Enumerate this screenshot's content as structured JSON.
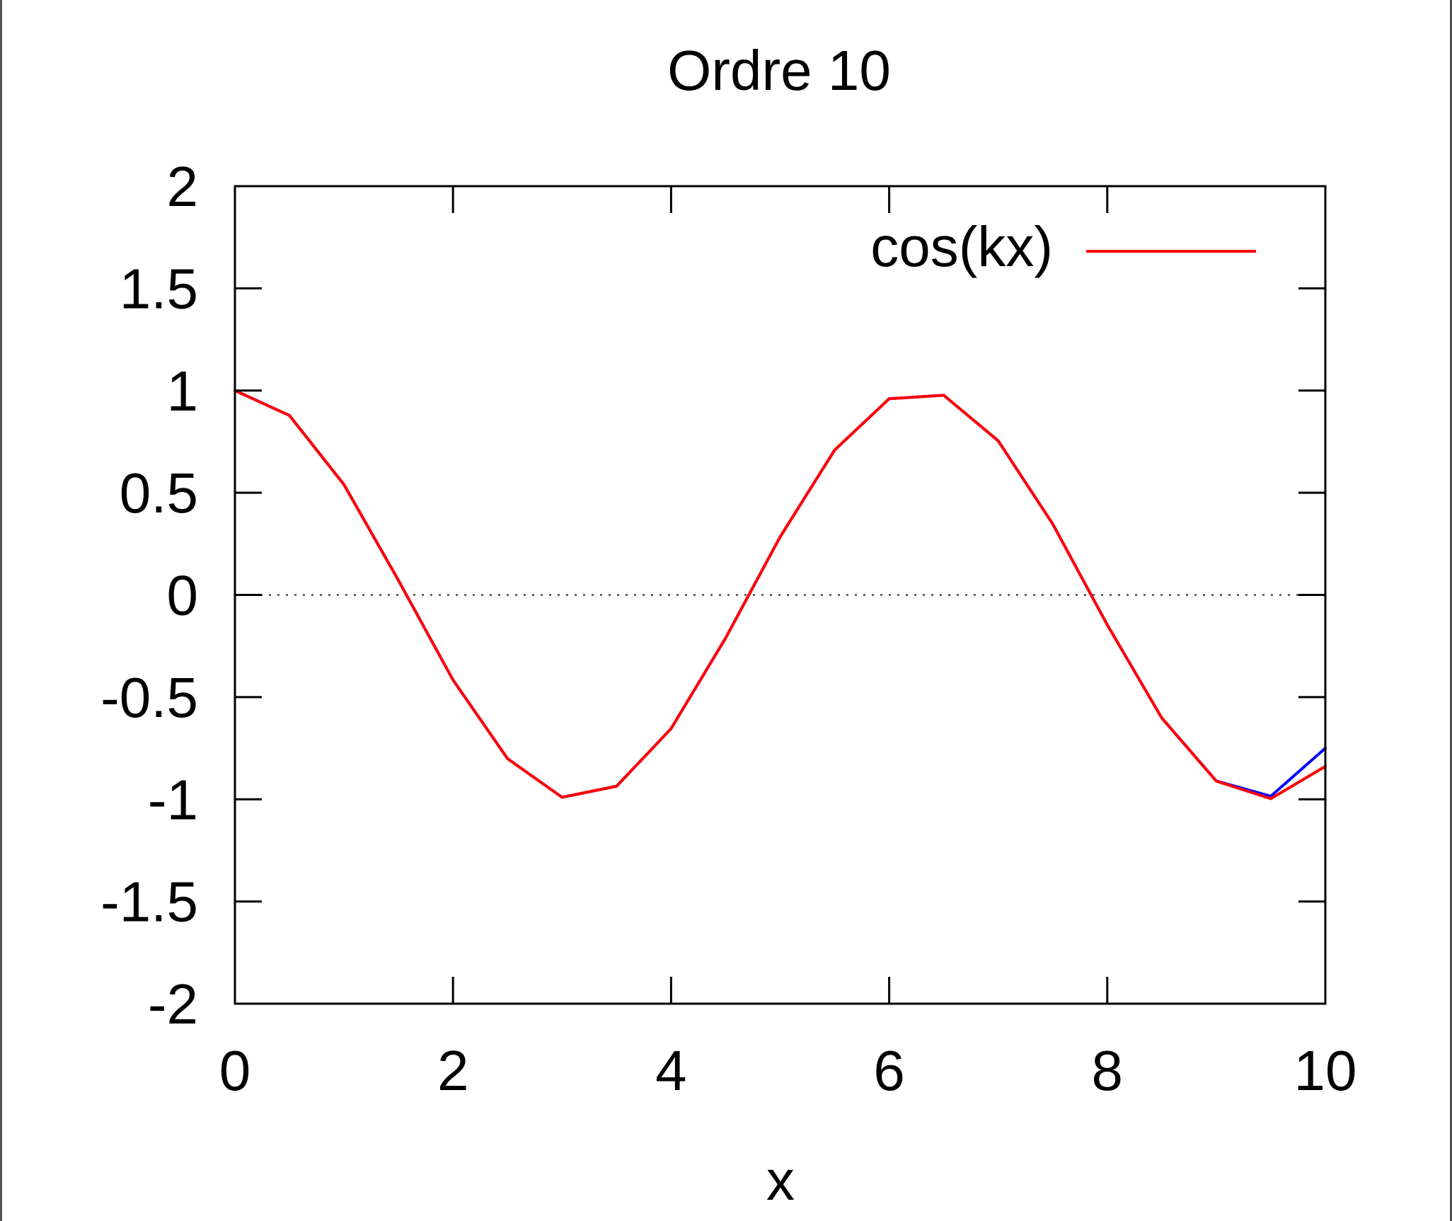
{
  "chart_data": {
    "type": "line",
    "title": "Ordre 10",
    "xlabel": "x",
    "ylabel": "",
    "xlim": [
      0,
      10
    ],
    "ylim": [
      -2,
      2
    ],
    "x_ticks": [
      "0",
      "2",
      "4",
      "6",
      "8",
      "10"
    ],
    "y_ticks": [
      "2",
      "1.5",
      "1",
      "0.5",
      "0",
      "-0.5",
      "-1",
      "-1.5",
      "-2"
    ],
    "zero_line": "dotted",
    "grid": false,
    "legend": {
      "placement": "top-right",
      "entries": [
        {
          "label": "cos(kx)",
          "color": "#ff0000"
        }
      ]
    },
    "series": [
      {
        "name": "cos(kx)",
        "color": "#ff0000",
        "x": [
          0,
          0.5,
          1,
          1.5,
          2,
          2.5,
          3,
          3.5,
          4,
          4.5,
          5,
          5.5,
          6,
          6.5,
          7,
          7.5,
          8,
          8.5,
          9,
          9.5,
          10
        ],
        "y": [
          1,
          0.878,
          0.54,
          0.071,
          -0.416,
          -0.801,
          -0.99,
          -0.936,
          -0.654,
          -0.211,
          0.284,
          0.709,
          0.96,
          0.977,
          0.754,
          0.347,
          -0.146,
          -0.602,
          -0.911,
          -0.997,
          -0.839
        ]
      },
      {
        "color": "#0000ff",
        "x": [
          0,
          0.5,
          1,
          1.5,
          2,
          2.5,
          3,
          3.5,
          4,
          4.5,
          5,
          5.5,
          6,
          6.5,
          7,
          7.5,
          8,
          8.5,
          9,
          9.5,
          10
        ],
        "y": [
          1,
          0.878,
          0.54,
          0.071,
          -0.416,
          -0.801,
          -0.99,
          -0.936,
          -0.654,
          -0.211,
          0.284,
          0.709,
          0.96,
          0.977,
          0.754,
          0.347,
          -0.146,
          -0.602,
          -0.91,
          -0.985,
          -0.75
        ]
      }
    ]
  }
}
